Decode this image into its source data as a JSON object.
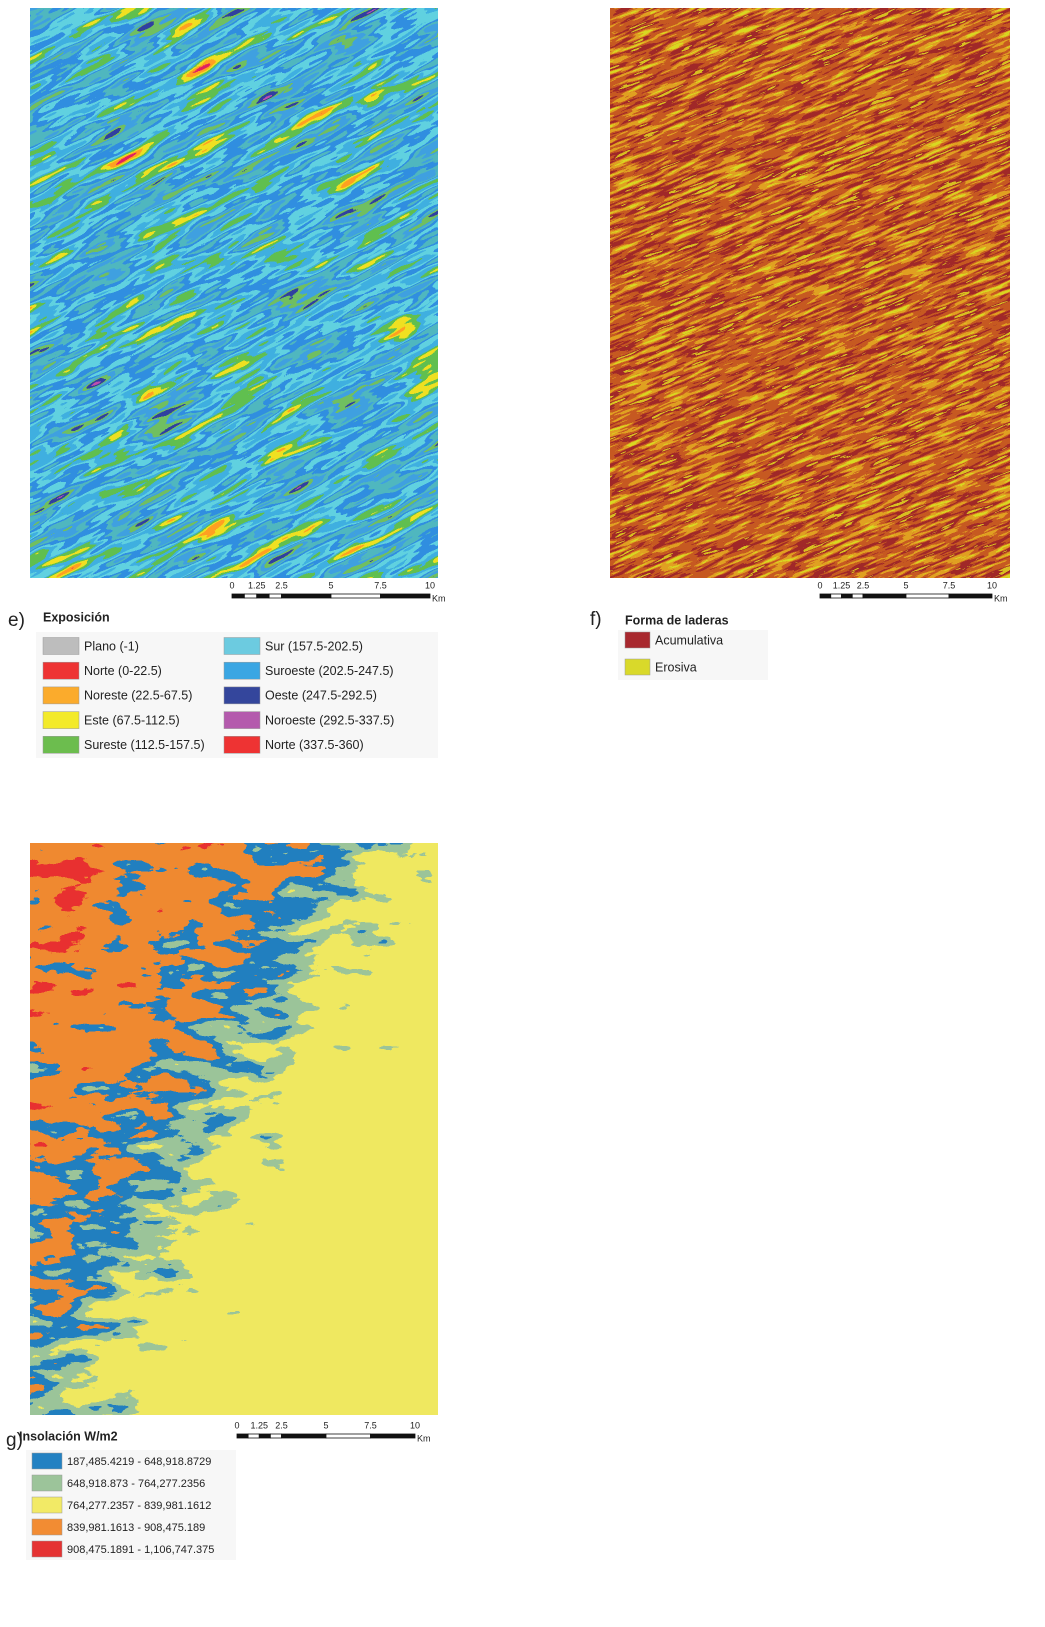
{
  "panels": [
    {
      "letter": "e)",
      "legend_title": "Exposición",
      "legend": [
        {
          "label": "Plano (-1)",
          "color": "#bdbdbd"
        },
        {
          "label": "Norte (0-22.5)",
          "color": "#ee3333"
        },
        {
          "label": "Noreste (22.5-67.5)",
          "color": "#fbab2c"
        },
        {
          "label": "Este (67.5-112.5)",
          "color": "#f3ea2a"
        },
        {
          "label": "Sureste (112.5-157.5)",
          "color": "#6cbd4e"
        },
        {
          "label": "Sur (157.5-202.5)",
          "color": "#6ccbe0"
        },
        {
          "label": "Suroeste (202.5-247.5)",
          "color": "#3aa6e3"
        },
        {
          "label": "Oeste (247.5-292.5)",
          "color": "#34469c"
        },
        {
          "label": "Noroeste (292.5-337.5)",
          "color": "#b45aad"
        },
        {
          "label": "Norte (337.5-360)",
          "color": "#ee3333"
        }
      ],
      "scale_labels": [
        "0",
        "1.25",
        "2.5",
        "5",
        "7.5",
        "10"
      ],
      "scale_unit": "Km"
    },
    {
      "letter": "f)",
      "legend_title": "Forma de laderas",
      "legend": [
        {
          "label": "Acumulativa",
          "color": "#a8282e"
        },
        {
          "label": "Erosiva",
          "color": "#d9d92a"
        }
      ],
      "scale_labels": [
        "0",
        "1.25",
        "2.5",
        "5",
        "7.5",
        "10"
      ],
      "scale_unit": "Km"
    },
    {
      "letter": "g)",
      "legend_title": "Insolación W/m2",
      "legend": [
        {
          "label": "187,485.4219 - 648,918.8729",
          "color": "#2381c2"
        },
        {
          "label": "648,918.873 - 764,277.2356",
          "color": "#9cc49a"
        },
        {
          "label": "764,277.2357 - 839,981.1612",
          "color": "#f2ea66"
        },
        {
          "label": "839,981.1613 - 908,475.189",
          "color": "#f28c33"
        },
        {
          "label": "908,475.1891 - 1,106,747.375",
          "color": "#e53333"
        }
      ],
      "scale_labels": [
        "0",
        "1.25",
        "2.5",
        "5",
        "7.5",
        "10"
      ],
      "scale_unit": "Km"
    }
  ]
}
